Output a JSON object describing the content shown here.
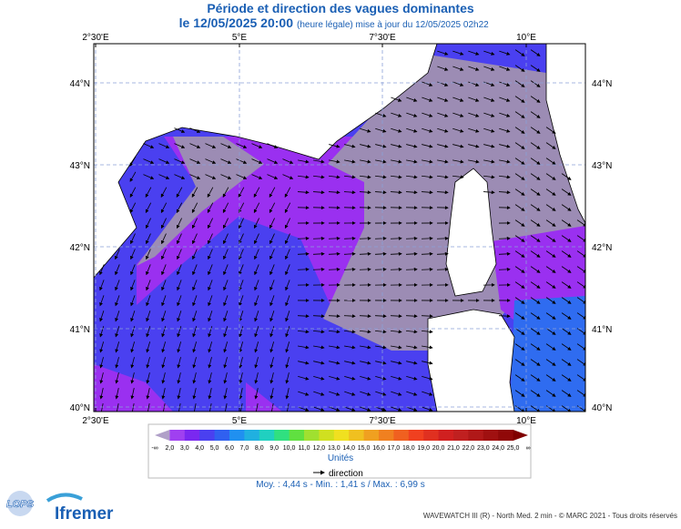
{
  "header": {
    "title": "Période et direction des vagues dominantes",
    "date": "le 12/05/2025 20:00",
    "update": "(heure légale) mise à jour du 12/05/2025 02h22"
  },
  "map": {
    "lon_labels": [
      "2°30'E",
      "5°E",
      "7°30'E",
      "10°E"
    ],
    "lat_labels": [
      "44°N",
      "43°N",
      "42°N",
      "41°N",
      "40°N"
    ]
  },
  "legend": {
    "labels": [
      "-∞",
      "2,0",
      "3,0",
      "4,0",
      "5,0",
      "6,0",
      "7,0",
      "8,0",
      "9,0",
      "10,0",
      "11,0",
      "12,0",
      "13,0",
      "14,0",
      "15,0",
      "16,0",
      "17,0",
      "18,0",
      "19,0",
      "20,0",
      "21,0",
      "22,0",
      "23,0",
      "24,0",
      "25,0",
      "∞"
    ],
    "colors": [
      "#b0a0c8",
      "#a040f0",
      "#7a28f0",
      "#4a40f0",
      "#3060f0",
      "#2090f0",
      "#20b0e0",
      "#20d0c0",
      "#30e080",
      "#60e040",
      "#a0e030",
      "#d0e020",
      "#f0e020",
      "#f0c020",
      "#f0a020",
      "#f08020",
      "#f06020",
      "#f04020",
      "#e03020",
      "#d02020",
      "#c02020",
      "#b01818",
      "#a01010",
      "#900808",
      "#800000"
    ],
    "unit": "Unités",
    "direction": "direction"
  },
  "stats": "Moy. : 4,44 s  -  Min. : 1,41 s / Max. : 6,99 s",
  "logos": {
    "lops": "LOPS",
    "ifremer": "Ifremer"
  },
  "footer": "WAVEWATCH III (R) - North Med. 2 min - © MARC 2021 - Tous droits réservés"
}
